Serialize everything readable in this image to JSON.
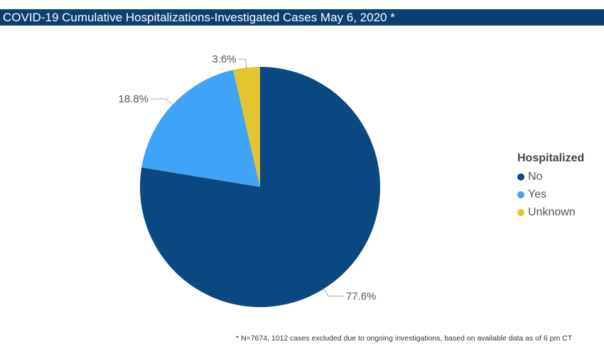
{
  "title": "COVID-19 Cumulative Hospitalizations-Investigated Cases May 6, 2020 *",
  "footnote": "* N=7674, 1012 cases excluded due to ongoing investigations, based on available data as of 6 pm CT",
  "chart_data": {
    "type": "pie",
    "legend_title": "Hospitalized",
    "legend_position": "right",
    "slices": [
      {
        "name": "No",
        "value": 77.6,
        "label": "77.6%",
        "color": "#0b4780"
      },
      {
        "name": "Yes",
        "value": 18.8,
        "label": "18.8%",
        "color": "#3fa3f7"
      },
      {
        "name": "Unknown",
        "value": 3.6,
        "label": "3.6%",
        "color": "#e3c531"
      }
    ]
  }
}
